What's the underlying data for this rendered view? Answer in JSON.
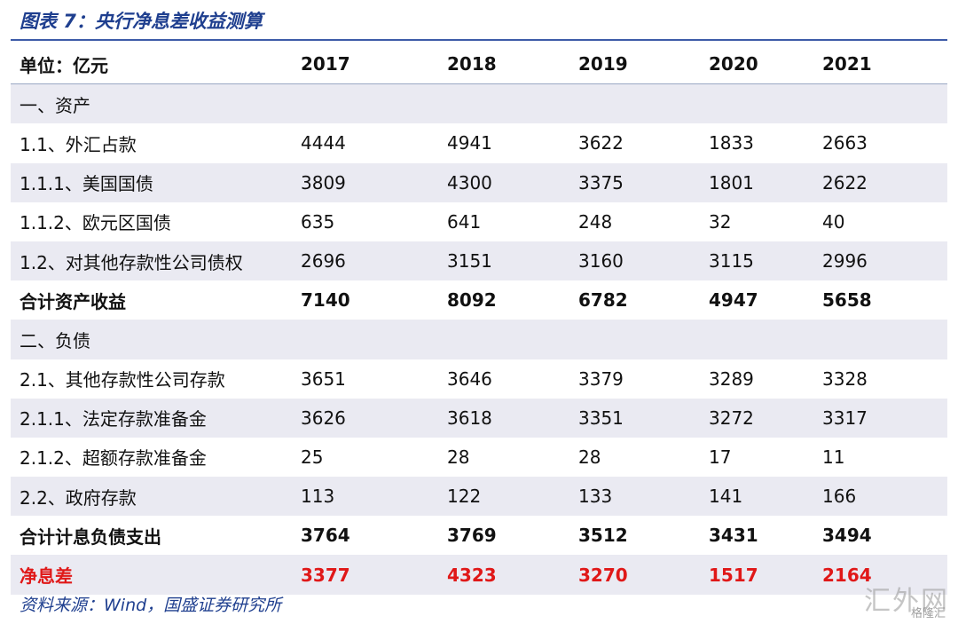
{
  "title": "图表 7：央行净息差收益测算",
  "columns": [
    "单位：亿元",
    "2017",
    "2018",
    "2019",
    "2020",
    "2021"
  ],
  "rows": [
    {
      "label": "一、资产",
      "values": [
        "",
        "",
        "",
        "",
        ""
      ],
      "style": "shade"
    },
    {
      "label": "1.1、外汇占款",
      "values": [
        "4444",
        "4941",
        "3622",
        "1833",
        "2663"
      ],
      "style": ""
    },
    {
      "label": "1.1.1、美国国债",
      "values": [
        "3809",
        "4300",
        "3375",
        "1801",
        "2622"
      ],
      "style": "shade"
    },
    {
      "label": "1.1.2、欧元区国债",
      "values": [
        "635",
        "641",
        "248",
        "32",
        "40"
      ],
      "style": ""
    },
    {
      "label": "1.2、对其他存款性公司债权",
      "values": [
        "2696",
        "3151",
        "3160",
        "3115",
        "2996"
      ],
      "style": "shade"
    },
    {
      "label": "合计资产收益",
      "values": [
        "7140",
        "8092",
        "6782",
        "4947",
        "5658"
      ],
      "style": "bold"
    },
    {
      "label": "二、负债",
      "values": [
        "",
        "",
        "",
        "",
        ""
      ],
      "style": "shade"
    },
    {
      "label": "2.1、其他存款性公司存款",
      "values": [
        "3651",
        "3646",
        "3379",
        "3289",
        "3328"
      ],
      "style": ""
    },
    {
      "label": "2.1.1、法定存款准备金",
      "values": [
        "3626",
        "3618",
        "3351",
        "3272",
        "3317"
      ],
      "style": "shade"
    },
    {
      "label": "2.1.2、超额存款准备金",
      "values": [
        "25",
        "28",
        "28",
        "17",
        "11"
      ],
      "style": ""
    },
    {
      "label": "2.2、政府存款",
      "values": [
        "113",
        "122",
        "133",
        "141",
        "166"
      ],
      "style": "shade"
    },
    {
      "label": "合计计息负债支出",
      "values": [
        "3764",
        "3769",
        "3512",
        "3431",
        "3494"
      ],
      "style": "bold"
    },
    {
      "label": "净息差",
      "values": [
        "3377",
        "4323",
        "3270",
        "1517",
        "2164"
      ],
      "style": "shade red"
    }
  ],
  "source": "资料来源：Wind，国盛证券研究所",
  "watermark": {
    "main": "汇外网",
    "sub": "格隆汇"
  }
}
